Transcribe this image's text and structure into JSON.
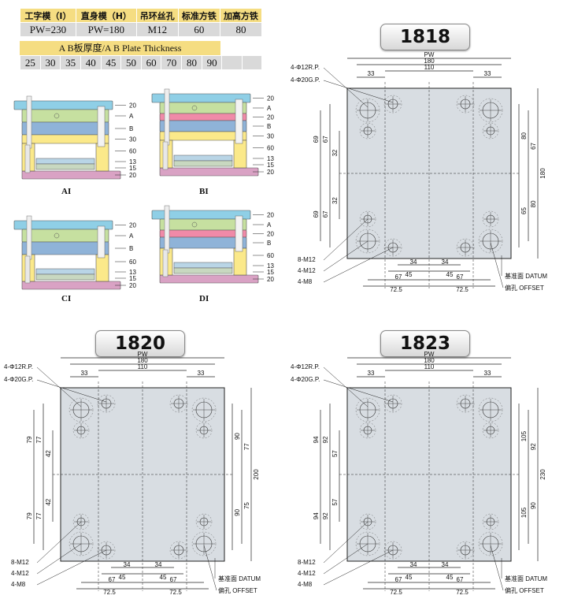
{
  "spec_table": {
    "headers": [
      "工字模（I）",
      "直身模（H）",
      "吊环丝孔",
      "标准方铁",
      "加高方铁"
    ],
    "values": [
      "PW=230",
      "PW=180",
      "M12",
      "60",
      "80"
    ]
  },
  "thickness": {
    "title": "A B板厚度/A B Plate Thickness",
    "values": [
      "25",
      "30",
      "35",
      "40",
      "45",
      "50",
      "60",
      "70",
      "80",
      "90"
    ]
  },
  "molds": [
    {
      "label": "AI",
      "plates": [
        "20",
        "A",
        "B",
        "30",
        "60",
        "13",
        "15",
        "20"
      ]
    },
    {
      "label": "BI",
      "plates": [
        "20",
        "A",
        "20",
        "B",
        "30",
        "60",
        "13",
        "15",
        "20"
      ]
    },
    {
      "label": "CI",
      "plates": [
        "20",
        "A",
        "B",
        "60",
        "13",
        "15",
        "20"
      ]
    },
    {
      "label": "DI",
      "plates": [
        "20",
        "A",
        "20",
        "B",
        "60",
        "13",
        "15",
        "20"
      ]
    }
  ],
  "diagrams": [
    {
      "badge": "1818",
      "pw": "PW",
      "w180": "180",
      "w110": "110",
      "w33a": "33",
      "w33b": "33",
      "left_outer": [
        "69",
        "69"
      ],
      "left_inner": [
        "67",
        "67"
      ],
      "left_mid": [
        "32",
        "32"
      ],
      "right_small": [
        "80",
        "65"
      ],
      "right_mid": [
        "67",
        "80"
      ],
      "right_total": "180",
      "bottom_a": [
        "34",
        "34"
      ],
      "bottom_b": [
        "45",
        "45"
      ],
      "bottom_c": [
        "67",
        "67"
      ],
      "bottom_d": [
        "72.5",
        "72.5"
      ],
      "rp": "4-Φ12R.P.",
      "gp": "4-Φ20G.P.",
      "m12a": "8-M12",
      "m12b": "4-M12",
      "m8": "4-M8",
      "datum": "基准面 DATUM",
      "offset": "偏孔 OFFSET"
    },
    {
      "badge": "1820",
      "pw": "PW",
      "w180": "180",
      "w110": "110",
      "w33a": "33",
      "w33b": "33",
      "left_outer": [
        "79",
        "79"
      ],
      "left_inner": [
        "77",
        "77"
      ],
      "left_mid": [
        "42",
        "42"
      ],
      "right_small": [
        "90",
        "90"
      ],
      "right_mid": [
        "77",
        "75"
      ],
      "right_total": "200",
      "bottom_a": [
        "34",
        "34"
      ],
      "bottom_b": [
        "45",
        "45"
      ],
      "bottom_c": [
        "67",
        "67"
      ],
      "bottom_d": [
        "72.5",
        "72.5"
      ],
      "rp": "4-Φ12R.P.",
      "gp": "4-Φ20G.P.",
      "m12a": "8-M12",
      "m12b": "4-M12",
      "m8": "4-M8",
      "datum": "基准面 DATUM",
      "offset": "偏孔 OFFSET"
    },
    {
      "badge": "1823",
      "pw": "PW",
      "w180": "180",
      "w110": "110",
      "w33a": "33",
      "w33b": "33",
      "left_outer": [
        "94",
        "94"
      ],
      "left_inner": [
        "92",
        "92"
      ],
      "left_mid": [
        "57",
        "57"
      ],
      "right_small": [
        "105",
        "105"
      ],
      "right_mid": [
        "92",
        "90"
      ],
      "right_total": "230",
      "bottom_a": [
        "34",
        "34"
      ],
      "bottom_b": [
        "45",
        "45"
      ],
      "bottom_c": [
        "67",
        "67"
      ],
      "bottom_d": [
        "72.5",
        "72.5"
      ],
      "rp": "4-Φ12R.P.",
      "gp": "4-Φ20G.P.",
      "m12a": "8-M12",
      "m12b": "4-M12",
      "m8": "4-M8",
      "datum": "基准面 DATUM",
      "offset": "偏孔 OFFSET"
    }
  ],
  "colors": {
    "top_plate": "#8fcfe6",
    "a_plate": "#c6e0a0",
    "b_plate": "#8fb3d8",
    "spacer": "#fbe98a",
    "bottom_plate": "#d9a2c4",
    "red_plate": "#f08aa8",
    "plate_fill": "#d8dde2"
  }
}
